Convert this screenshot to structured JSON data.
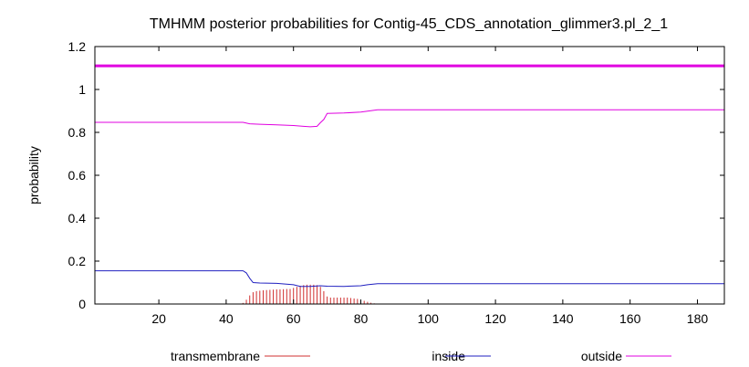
{
  "chart_data": {
    "type": "line",
    "title": "TMHMM posterior probabilities for Contig-45_CDS_annotation_glimmer3.pl_2_1",
    "xlabel": "",
    "ylabel": "probability",
    "xlim": [
      1,
      188
    ],
    "ylim": [
      0,
      1.2
    ],
    "x_ticks": [
      20,
      40,
      60,
      80,
      100,
      120,
      140,
      160,
      180
    ],
    "y_ticks": [
      0,
      0.2,
      0.4,
      0.6,
      0.8,
      1,
      1.2
    ],
    "y_tick_labels": [
      "0",
      "0.2",
      "0.4",
      "0.6",
      "0.8",
      "1",
      "1.2"
    ],
    "grid": false,
    "legend_position": "bottom",
    "reference_line": {
      "y": 1.11,
      "color": "#e000e0"
    },
    "series": [
      {
        "name": "transmembrane",
        "style": "impulses",
        "color": "#d03030",
        "x": [
          45,
          46,
          47,
          48,
          49,
          50,
          51,
          52,
          53,
          54,
          55,
          56,
          57,
          58,
          59,
          60,
          61,
          62,
          63,
          64,
          65,
          66,
          67,
          68,
          69,
          70,
          71,
          72,
          73,
          74,
          75,
          76,
          77,
          78,
          79,
          80,
          81,
          82,
          83,
          84
        ],
        "y": [
          0.005,
          0.02,
          0.04,
          0.055,
          0.06,
          0.062,
          0.064,
          0.065,
          0.066,
          0.067,
          0.068,
          0.068,
          0.069,
          0.07,
          0.07,
          0.075,
          0.08,
          0.085,
          0.088,
          0.09,
          0.09,
          0.09,
          0.088,
          0.08,
          0.06,
          0.035,
          0.03,
          0.03,
          0.03,
          0.03,
          0.03,
          0.03,
          0.028,
          0.026,
          0.024,
          0.02,
          0.015,
          0.01,
          0.006,
          0.003
        ]
      },
      {
        "name": "inside",
        "style": "line",
        "color": "#2020c0",
        "x": [
          1,
          45,
          46,
          47,
          48,
          50,
          55,
          60,
          62,
          65,
          68,
          70,
          75,
          80,
          82,
          85,
          188
        ],
        "y": [
          0.155,
          0.155,
          0.145,
          0.12,
          0.1,
          0.098,
          0.096,
          0.09,
          0.082,
          0.082,
          0.085,
          0.083,
          0.082,
          0.085,
          0.09,
          0.095,
          0.095
        ]
      },
      {
        "name": "outside",
        "style": "line",
        "color": "#e000e0",
        "x": [
          1,
          45,
          47,
          50,
          55,
          60,
          63,
          65,
          67,
          68,
          69,
          70,
          75,
          80,
          85,
          188
        ],
        "y": [
          0.847,
          0.847,
          0.84,
          0.838,
          0.835,
          0.832,
          0.828,
          0.826,
          0.828,
          0.845,
          0.86,
          0.888,
          0.89,
          0.895,
          0.905,
          0.905
        ]
      }
    ]
  }
}
